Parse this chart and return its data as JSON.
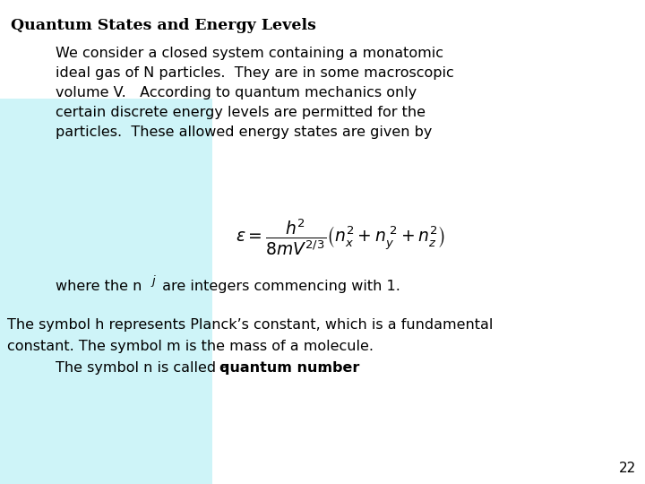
{
  "title": "Quantum States and Energy Levels",
  "bg_color": "#ffffff",
  "light_blue_color": "#cef4f8",
  "paragraph1_lines": [
    "We consider a closed system containing a monatomic",
    "ideal gas of N particles.  They are in some macroscopic",
    "volume V.   According to quantum mechanics only",
    "certain discrete energy levels are permitted for the",
    "particles.  These allowed energy states are given by"
  ],
  "equation": "$\\varepsilon = \\dfrac{h^2}{8mV^{2/3}}\\left(n_x^2 + n_y^{\\;2} + n_z^2\\right)$",
  "where_line": "where the n",
  "where_sub": "j",
  "where_rest": " are integers commencing with 1.",
  "p3_line1": "The symbol h represents Planck’s constant, which is a fundamental",
  "p3_line2": "constant. The symbol m is the mass of a molecule.",
  "p3_line3_plain": "The symbol n is called a ",
  "p3_line3_bold": "quantum number",
  "p3_line3_end": ".",
  "page_number": "22",
  "font_size_title": 12.5,
  "font_size_body": 11.5,
  "font_size_eq": 13.5,
  "font_size_page": 11
}
